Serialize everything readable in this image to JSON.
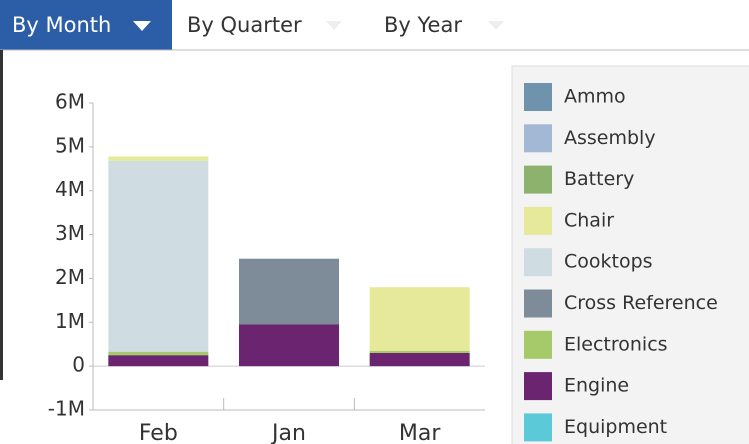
{
  "tabs": [
    "By Month",
    "By Quarter",
    "By Year"
  ],
  "chart_data": {
    "type": "stacked-bar",
    "categories": [
      "Feb",
      "Jan",
      "Mar"
    ],
    "series": [
      {
        "name": "Ammo",
        "color": "#6f93ac",
        "values": [
          0,
          0,
          0
        ]
      },
      {
        "name": "Assembly",
        "color": "#a2b8d4",
        "values": [
          0,
          0,
          0
        ]
      },
      {
        "name": "Battery",
        "color": "#8db26e",
        "values": [
          0,
          0,
          0
        ]
      },
      {
        "name": "Chair",
        "color": "#e6e89a",
        "values": [
          100000,
          0,
          1450000
        ]
      },
      {
        "name": "Cooktops",
        "color": "#cfdde3",
        "values": [
          4350000,
          0,
          0
        ]
      },
      {
        "name": "Cross Reference",
        "color": "#7d8c98",
        "values": [
          0,
          1500000,
          0
        ]
      },
      {
        "name": "Electronics",
        "color": "#a6c96a",
        "values": [
          80000,
          0,
          50000
        ]
      },
      {
        "name": "Engine",
        "color": "#6b2470",
        "values": [
          250000,
          950000,
          300000
        ]
      },
      {
        "name": "Equipment",
        "color": "#5cc9d8",
        "values": [
          0,
          0,
          0
        ]
      }
    ],
    "ylim": [
      -1000000,
      6000000
    ],
    "yticks": [
      {
        "value": -1000000,
        "label": "-1M"
      },
      {
        "value": 0,
        "label": "0"
      },
      {
        "value": 1000000,
        "label": "1M"
      },
      {
        "value": 2000000,
        "label": "2M"
      },
      {
        "value": 3000000,
        "label": "3M"
      },
      {
        "value": 4000000,
        "label": "4M"
      },
      {
        "value": 5000000,
        "label": "5M"
      },
      {
        "value": 6000000,
        "label": "6M"
      }
    ]
  }
}
